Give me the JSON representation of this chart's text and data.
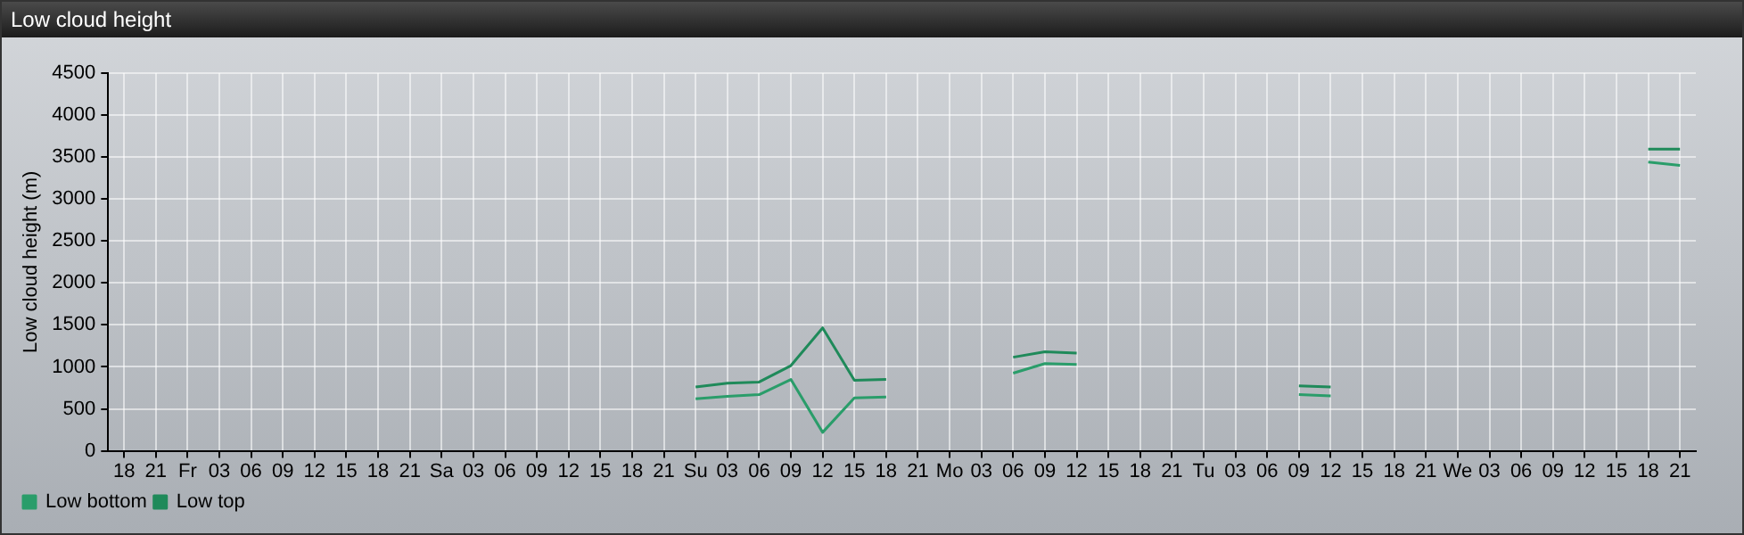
{
  "chart_data": {
    "type": "line",
    "title": "Low cloud height",
    "ylabel": "Low cloud height (m)",
    "categories": [
      "18",
      "21",
      "Fr",
      "03",
      "06",
      "09",
      "12",
      "15",
      "18",
      "21",
      "Sa",
      "03",
      "06",
      "09",
      "12",
      "15",
      "18",
      "21",
      "Su",
      "03",
      "06",
      "09",
      "12",
      "15",
      "18",
      "21",
      "Mo",
      "03",
      "06",
      "09",
      "12",
      "15",
      "18",
      "21",
      "Tu",
      "03",
      "06",
      "09",
      "12",
      "15",
      "18",
      "21",
      "We",
      "03",
      "06",
      "09",
      "12",
      "15",
      "18",
      "21"
    ],
    "series": [
      {
        "name": "Low bottom",
        "color": "#2a9d6a",
        "values": [
          null,
          null,
          null,
          null,
          null,
          null,
          null,
          null,
          null,
          null,
          null,
          null,
          null,
          null,
          null,
          null,
          null,
          null,
          620,
          650,
          670,
          850,
          220,
          630,
          640,
          null,
          null,
          null,
          925,
          1040,
          1030,
          null,
          null,
          null,
          null,
          null,
          null,
          670,
          655,
          null,
          null,
          null,
          null,
          null,
          null,
          null,
          null,
          null,
          3440,
          3400
        ]
      },
      {
        "name": "Low top",
        "color": "#1f8a5a",
        "values": [
          null,
          null,
          null,
          null,
          null,
          null,
          null,
          null,
          null,
          null,
          null,
          null,
          null,
          null,
          null,
          null,
          null,
          null,
          760,
          805,
          820,
          1015,
          1465,
          840,
          850,
          null,
          null,
          null,
          1115,
          1180,
          1165,
          null,
          null,
          null,
          null,
          null,
          null,
          775,
          760,
          null,
          null,
          null,
          null,
          null,
          null,
          null,
          null,
          null,
          3595,
          3595
        ]
      }
    ],
    "ylim": [
      0,
      4500
    ],
    "yticks": [
      0,
      500,
      1000,
      1500,
      2000,
      2500,
      3000,
      3500,
      4000,
      4500
    ],
    "grid": true,
    "legend": "bottom left",
    "marker": "none",
    "line_style": "solid"
  }
}
